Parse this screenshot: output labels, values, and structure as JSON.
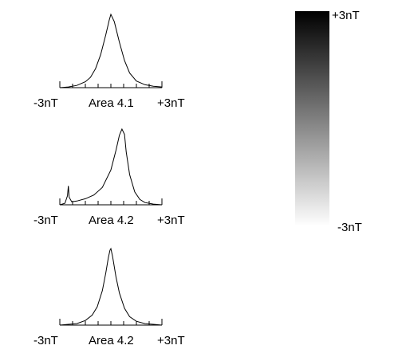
{
  "chart_data": [
    {
      "type": "line",
      "title": "",
      "label_left": "-3nT",
      "label_center": "Area 4.1",
      "label_right": "+3nT",
      "x_range": [
        -3,
        3
      ],
      "x": [
        -3.0,
        -2.5,
        -2.0,
        -1.5,
        -1.2,
        -0.9,
        -0.6,
        -0.3,
        -0.1,
        0.0,
        0.2,
        0.5,
        0.8,
        1.1,
        1.5,
        2.0,
        2.5,
        3.0
      ],
      "y": [
        0.0,
        0.01,
        0.03,
        0.08,
        0.14,
        0.26,
        0.45,
        0.72,
        0.92,
        1.0,
        0.9,
        0.62,
        0.37,
        0.2,
        0.09,
        0.04,
        0.02,
        0.01
      ]
    },
    {
      "type": "line",
      "title": "",
      "label_left": "-3nT",
      "label_center": "Area 4.2",
      "label_right": "+3nT",
      "x_range": [
        -3,
        3
      ],
      "x": [
        -3.0,
        -2.7,
        -2.55,
        -2.5,
        -2.45,
        -2.3,
        -2.0,
        -1.5,
        -1.0,
        -0.5,
        0.0,
        0.3,
        0.5,
        0.65,
        0.8,
        0.9,
        1.1,
        1.4,
        1.7,
        2.0,
        2.5,
        3.0
      ],
      "y": [
        0.0,
        0.02,
        0.12,
        0.25,
        0.1,
        0.04,
        0.05,
        0.08,
        0.13,
        0.23,
        0.46,
        0.72,
        0.92,
        1.0,
        0.93,
        0.7,
        0.4,
        0.17,
        0.07,
        0.03,
        0.01,
        0.0
      ]
    },
    {
      "type": "line",
      "title": "",
      "label_left": "-3nT",
      "label_center": "Area 4.2",
      "label_right": "+3nT",
      "x_range": [
        -3,
        3
      ],
      "x": [
        -3.0,
        -2.5,
        -2.0,
        -1.5,
        -1.1,
        -0.8,
        -0.5,
        -0.3,
        -0.15,
        -0.05,
        0.0,
        0.1,
        0.3,
        0.5,
        0.8,
        1.1,
        1.5,
        2.0,
        2.5,
        3.0
      ],
      "y": [
        0.0,
        0.01,
        0.02,
        0.06,
        0.13,
        0.24,
        0.45,
        0.68,
        0.88,
        0.98,
        1.0,
        0.9,
        0.63,
        0.42,
        0.22,
        0.11,
        0.05,
        0.02,
        0.01,
        0.0
      ]
    }
  ],
  "colorbar": {
    "top_label": "+3nT",
    "bottom_label": "-3nT",
    "color_top": "#000000",
    "color_bottom": "#ffffff"
  }
}
